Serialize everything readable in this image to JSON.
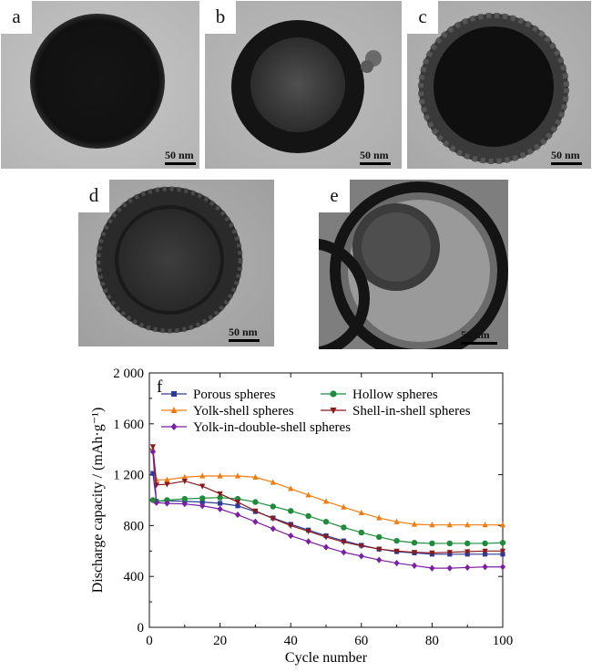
{
  "panels": [
    {
      "id": "a",
      "label": "a",
      "scale": "50 nm"
    },
    {
      "id": "b",
      "label": "b",
      "scale": "50 nm"
    },
    {
      "id": "c",
      "label": "c",
      "scale": "50 nm"
    },
    {
      "id": "d",
      "label": "d",
      "scale": "50 nm"
    },
    {
      "id": "e",
      "label": "e",
      "scale": "50 nm"
    }
  ],
  "chart_data": {
    "type": "line",
    "panel_label": "f",
    "xlabel": "Cycle number",
    "ylabel": "Discharge capacity / (mAh·g⁻¹)",
    "xlim": [
      0,
      100
    ],
    "ylim": [
      0,
      2000
    ],
    "xticks": [
      0,
      20,
      40,
      60,
      80,
      100
    ],
    "yticks": [
      0,
      400,
      800,
      1200,
      1600,
      2000
    ],
    "ytick_labels": [
      "0",
      "400",
      "800",
      "1 200",
      "1 600",
      "2 000"
    ],
    "legend_position": "top",
    "x": [
      1,
      2,
      5,
      10,
      15,
      20,
      25,
      30,
      35,
      40,
      45,
      50,
      55,
      60,
      65,
      70,
      75,
      80,
      85,
      90,
      95,
      100
    ],
    "series": [
      {
        "name": "Porous spheres",
        "color": "#2b3a9a",
        "marker": "square",
        "values": [
          1210,
          990,
          995,
          990,
          985,
          975,
          955,
          910,
          860,
          810,
          765,
          720,
          680,
          645,
          615,
          595,
          585,
          575,
          575,
          575,
          575,
          575
        ]
      },
      {
        "name": "Hollow spheres",
        "color": "#1f8c3b",
        "marker": "circle",
        "values": [
          1000,
          990,
          1000,
          1010,
          1015,
          1020,
          1010,
          985,
          950,
          915,
          875,
          830,
          785,
          745,
          710,
          680,
          665,
          660,
          660,
          660,
          660,
          665
        ]
      },
      {
        "name": "Yolk-shell spheres",
        "color": "#f07c10",
        "marker": "triangle-up",
        "values": [
          1400,
          1160,
          1160,
          1180,
          1190,
          1190,
          1190,
          1180,
          1140,
          1090,
          1040,
          990,
          945,
          900,
          860,
          830,
          810,
          805,
          805,
          805,
          805,
          805
        ]
      },
      {
        "name": "Shell-in-shell spheres",
        "color": "#8b1a1a",
        "marker": "triangle-down",
        "values": [
          1420,
          1120,
          1125,
          1150,
          1110,
          1050,
          985,
          915,
          855,
          800,
          755,
          710,
          670,
          640,
          615,
          600,
          590,
          585,
          590,
          595,
          600,
          600
        ]
      },
      {
        "name": "Yolk-in-double-shell spheres",
        "color": "#7b1fa2",
        "marker": "diamond",
        "values": [
          1380,
          980,
          975,
          970,
          955,
          930,
          885,
          830,
          775,
          720,
          675,
          630,
          590,
          560,
          530,
          505,
          485,
          465,
          465,
          470,
          475,
          475
        ]
      }
    ]
  }
}
